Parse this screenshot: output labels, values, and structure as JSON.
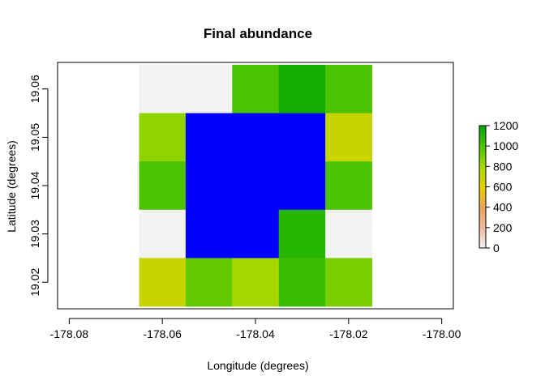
{
  "chart_data": {
    "type": "heatmap",
    "title": "Final abundance",
    "xlabel": "Longitude (degrees)",
    "ylabel": "Latitude (degrees)",
    "xlim": [
      -178.0825,
      -177.9975
    ],
    "ylim": [
      19.0145,
      19.0655
    ],
    "x_ticks": [
      -178.08,
      -178.06,
      -178.04,
      -178.02,
      -178.0
    ],
    "x_tick_labels": [
      "-178.08",
      "-178.06",
      "-178.04",
      "-178.02",
      "-178.00"
    ],
    "y_ticks": [
      19.02,
      19.03,
      19.04,
      19.05,
      19.06
    ],
    "y_tick_labels": [
      "19.02",
      "19.03",
      "19.04",
      "19.05",
      "19.06"
    ],
    "cell_size": [
      0.01,
      0.01
    ],
    "x_centers": [
      -178.06,
      -178.05,
      -178.04,
      -178.03,
      -178.02
    ],
    "y_centers": [
      19.06,
      19.05,
      19.04,
      19.03,
      19.02
    ],
    "values": [
      [
        0,
        0,
        1000,
        1150,
        1000
      ],
      [
        850,
        null,
        null,
        null,
        700
      ],
      [
        1000,
        null,
        null,
        null,
        1000
      ],
      [
        0,
        null,
        null,
        1100,
        0
      ],
      [
        700,
        950,
        800,
        1050,
        900
      ]
    ],
    "no_data_cells": [
      [
        0,
        0
      ],
      [
        0,
        1
      ],
      [
        3,
        0
      ],
      [
        3,
        4
      ]
    ],
    "masked_cells": [
      [
        1,
        1
      ],
      [
        1,
        2
      ],
      [
        1,
        3
      ],
      [
        2,
        1
      ],
      [
        2,
        2
      ],
      [
        2,
        3
      ],
      [
        3,
        1
      ],
      [
        3,
        2
      ]
    ],
    "masked_color": "#0000ff",
    "no_data_color": "#f2f2f2",
    "zlim": [
      0,
      1200
    ],
    "legend": {
      "position": "right",
      "ticks": [
        0,
        200,
        400,
        600,
        800,
        1000,
        1200
      ],
      "tick_labels": [
        "0",
        "200",
        "400",
        "600",
        "800",
        "1000",
        "1200"
      ]
    },
    "colormap": [
      {
        "v": 0,
        "c": "#f2f2f2"
      },
      {
        "v": 200,
        "c": "#eeb99f"
      },
      {
        "v": 400,
        "c": "#eaa45a"
      },
      {
        "v": 600,
        "c": "#e6cf00"
      },
      {
        "v": 800,
        "c": "#a6d800"
      },
      {
        "v": 1000,
        "c": "#4bc300"
      },
      {
        "v": 1200,
        "c": "#00a600"
      }
    ]
  }
}
